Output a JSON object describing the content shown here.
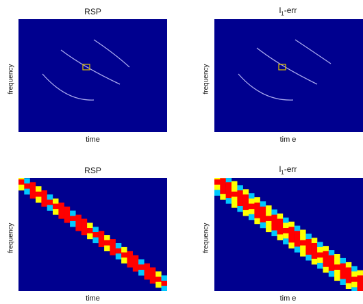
{
  "chart_data": [
    {
      "type": "heatmap",
      "title": "RSP",
      "xlabel": "time",
      "ylabel": "frequency",
      "colormap": {
        "background": "#00008f",
        "ridge": "#c8c8ff"
      },
      "highlight_box_color": "#e0c000"
    },
    {
      "type": "heatmap",
      "title_main": "l",
      "title_sub": "1",
      "title_rest": "-err",
      "xlabel": "tim e",
      "ylabel": "frequency",
      "colormap": {
        "background": "#00008f",
        "ridge": "#c8c8ff"
      },
      "highlight_box_color": "#e0c000"
    },
    {
      "type": "heatmap",
      "title": "RSP",
      "xlabel": "time",
      "ylabel": "frequency",
      "colormap": {
        "background": "#00008f",
        "low": "#00c8ff",
        "mid": "#ffff00",
        "high": "#ff0000"
      }
    },
    {
      "type": "heatmap",
      "title_main": "l",
      "title_sub": "1",
      "title_rest": "-err",
      "xlabel": "tim e",
      "ylabel": "frequency",
      "colormap": {
        "background": "#00008f",
        "low": "#00c8ff",
        "mid": "#ffff00",
        "high": "#ff0000"
      }
    }
  ]
}
